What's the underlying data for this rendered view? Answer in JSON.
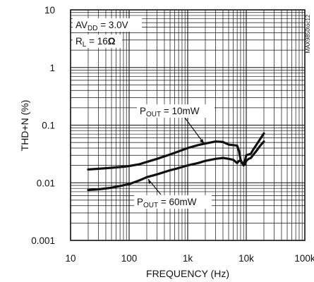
{
  "chart_data": {
    "type": "line",
    "xlabel": "FREQUENCY (Hz)",
    "ylabel": "THD+N (%)",
    "x_scale": "log",
    "y_scale": "log",
    "xlim": [
      10,
      100000
    ],
    "ylim": [
      0.001,
      10
    ],
    "grid": true,
    "x_tick_labels": [
      "10",
      "100",
      "1k",
      "10k",
      "100k"
    ],
    "y_tick_labels": [
      "10",
      "1",
      "0.1",
      "0.01",
      "0.001"
    ],
    "conditions": {
      "line1_prefix": "AV",
      "line1_sub": "DD",
      "line1_value": " = 3.0V",
      "line2_prefix": "R",
      "line2_sub": "L",
      "line2_value": " = 16",
      "line2_unit": "Ω"
    },
    "figure_id": "MAX9850toc12",
    "series": [
      {
        "name_prefix": "P",
        "name_sub": "OUT",
        "name_value": " = 10mW",
        "x": [
          20,
          30,
          50,
          80,
          100,
          150,
          200,
          300,
          500,
          700,
          1000,
          1500,
          2000,
          3000,
          4000,
          5000,
          6000,
          7000,
          7500,
          8000,
          8500,
          9000,
          9500,
          10000,
          11000,
          12000,
          13000,
          15000,
          17000,
          20000
        ],
        "y": [
          0.017,
          0.0175,
          0.0182,
          0.019,
          0.0195,
          0.021,
          0.023,
          0.026,
          0.031,
          0.035,
          0.04,
          0.045,
          0.048,
          0.052,
          0.051,
          0.046,
          0.045,
          0.044,
          0.036,
          0.025,
          0.022,
          0.022,
          0.024,
          0.03,
          0.031,
          0.032,
          0.037,
          0.046,
          0.056,
          0.072
        ]
      },
      {
        "name_prefix": "P",
        "name_sub": "OUT",
        "name_value": " = 60mW",
        "x": [
          20,
          30,
          50,
          70,
          100,
          150,
          200,
          300,
          500,
          700,
          1000,
          1500,
          2000,
          3000,
          4000,
          5000,
          6000,
          7000,
          7500,
          8000,
          8500,
          9000,
          9500,
          10000,
          11000,
          12000,
          13000,
          15000,
          17000,
          20000
        ],
        "y": [
          0.0075,
          0.0077,
          0.0082,
          0.0088,
          0.0095,
          0.011,
          0.0125,
          0.014,
          0.0165,
          0.018,
          0.02,
          0.022,
          0.024,
          0.026,
          0.027,
          0.026,
          0.025,
          0.022,
          0.024,
          0.024,
          0.022,
          0.02,
          0.021,
          0.024,
          0.026,
          0.027,
          0.03,
          0.036,
          0.043,
          0.052
        ]
      }
    ]
  }
}
